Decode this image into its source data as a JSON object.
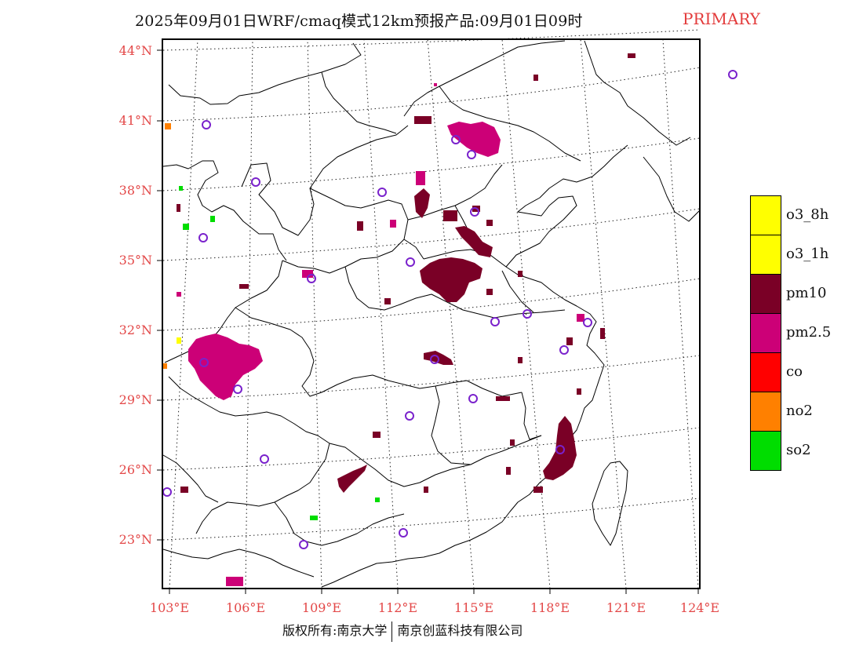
{
  "header": {
    "title": "2025年09月01日WRF/cmaq模式12km预报产品:09月01日09时",
    "tag": "PRIMARY"
  },
  "axes": {
    "lat_labels": [
      "44°N",
      "41°N",
      "38°N",
      "35°N",
      "32°N",
      "29°N",
      "26°N",
      "23°N"
    ],
    "lon_labels": [
      "103°E",
      "106°E",
      "109°E",
      "112°E",
      "115°E",
      "118°E",
      "121°E",
      "124°E"
    ]
  },
  "legend": {
    "items": [
      {
        "label": "o3_8h",
        "color": "#ffff00"
      },
      {
        "label": "o3_1h",
        "color": "#ffff00"
      },
      {
        "label": "pm10",
        "color": "#7a0026"
      },
      {
        "label": "pm2.5",
        "color": "#cc0077"
      },
      {
        "label": "co",
        "color": "#ff0000"
      },
      {
        "label": "no2",
        "color": "#ff8000"
      },
      {
        "label": "so2",
        "color": "#00dd00"
      }
    ]
  },
  "footer": {
    "left": "版权所有:南京大学",
    "right": "南京创蓝科技有限公司"
  },
  "colors": {
    "axis_label": "#e34848",
    "tag": "#e33b3b",
    "station_marker": "#7a22cc"
  }
}
